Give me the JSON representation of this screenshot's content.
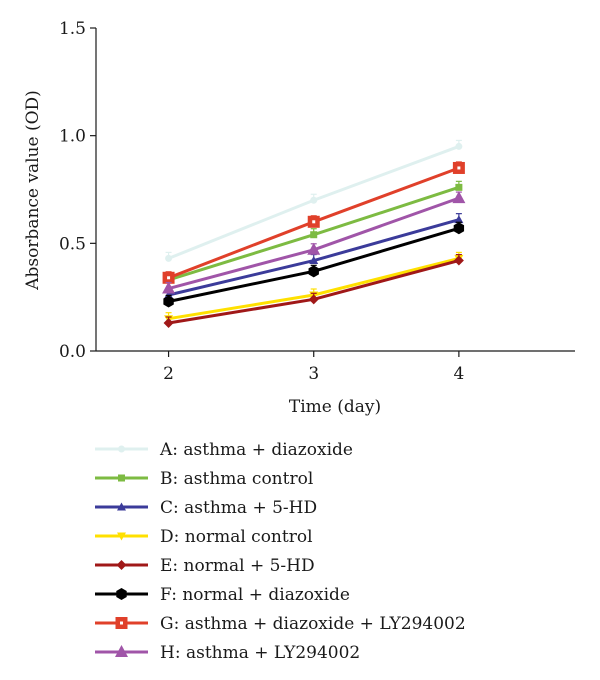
{
  "chart_data": {
    "type": "line",
    "xlabel": "Time (day)",
    "ylabel": "Absorbance value (OD)",
    "x": [
      2,
      3,
      4
    ],
    "xticks": [
      "2",
      "3",
      "4"
    ],
    "xlim": [
      1.5,
      4.8
    ],
    "ylim": [
      0.0,
      1.5
    ],
    "yticks": [
      "0.0",
      "0.5",
      "1.0",
      "1.5"
    ],
    "grid": false,
    "legend_position": "bottom",
    "series": [
      {
        "name": "A: asthma + diazoxide",
        "color": "#dff0ef",
        "marker": "circle-small",
        "values": [
          0.43,
          0.7,
          0.95
        ]
      },
      {
        "name": "B: asthma control",
        "color": "#7dbb42",
        "marker": "square-small",
        "values": [
          0.33,
          0.54,
          0.76
        ]
      },
      {
        "name": "C: asthma + 5-HD",
        "color": "#3b3b9a",
        "marker": "triangle-small",
        "values": [
          0.26,
          0.42,
          0.61
        ]
      },
      {
        "name": "D: normal control",
        "color": "#ffe000",
        "marker": "triangle-down-small",
        "values": [
          0.15,
          0.26,
          0.43
        ]
      },
      {
        "name": "E: normal + 5-HD",
        "color": "#a01818",
        "marker": "diamond",
        "values": [
          0.13,
          0.24,
          0.42
        ]
      },
      {
        "name": "F: normal + diazoxide",
        "color": "#000000",
        "marker": "hexagon",
        "values": [
          0.23,
          0.37,
          0.57
        ]
      },
      {
        "name": "G: asthma + diazoxide + LY294002",
        "color": "#e0402a",
        "marker": "square-dot",
        "values": [
          0.34,
          0.6,
          0.85
        ]
      },
      {
        "name": "H: asthma + LY294002",
        "color": "#a055a8",
        "marker": "triangle",
        "values": [
          0.29,
          0.47,
          0.71
        ]
      }
    ]
  }
}
